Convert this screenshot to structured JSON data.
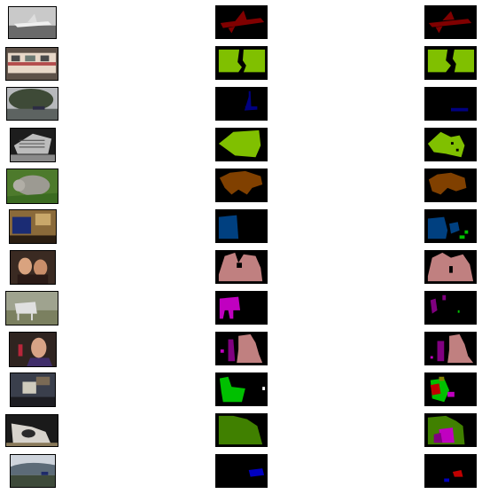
{
  "figure": {
    "columns": [
      "image",
      "ground-truth-mask",
      "predicted-mask"
    ],
    "rows": [
      {
        "subject": "airplane",
        "class_color": "#800000"
      },
      {
        "subject": "train",
        "class_color": "#80c000"
      },
      {
        "subject": "boat",
        "class_color": "#000080"
      },
      {
        "subject": "train",
        "class_color": "#80c000"
      },
      {
        "subject": "cat",
        "class_color": "#804000"
      },
      {
        "subject": "tvmonitor",
        "class_color": "#004080"
      },
      {
        "subject": "person",
        "class_color": "#c08080"
      },
      {
        "subject": "horse",
        "class_color": "#c000c0"
      },
      {
        "subject": "person",
        "class_color": "#c08080"
      },
      {
        "subject": "chair",
        "class_color": "#00c000"
      },
      {
        "subject": "dog",
        "class_color": "#408000"
      },
      {
        "subject": "car",
        "class_color": "#0000c0"
      }
    ]
  }
}
